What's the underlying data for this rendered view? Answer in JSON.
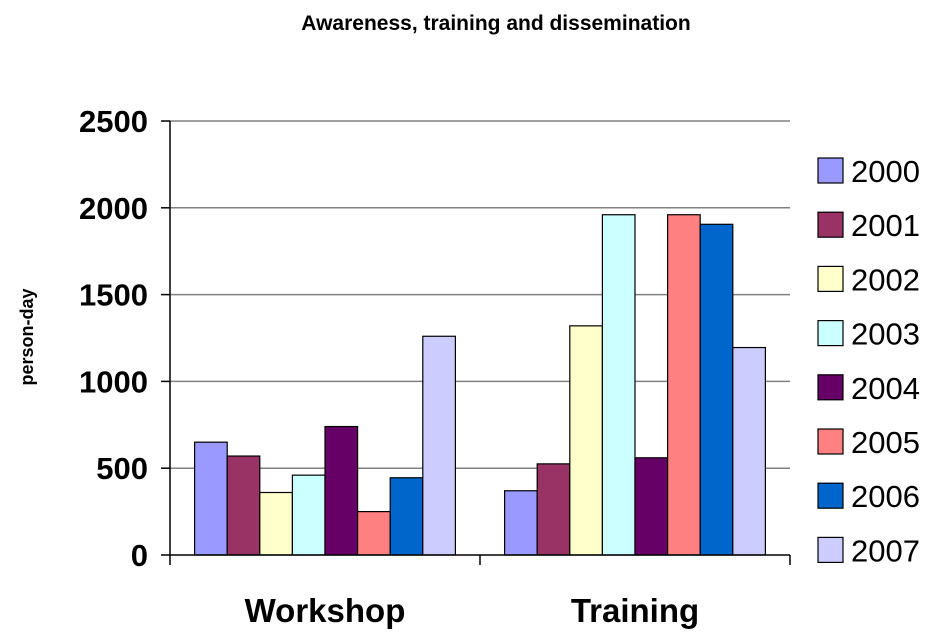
{
  "chart_data": {
    "type": "bar",
    "title": "Awareness, training and dissemination",
    "xlabel": "",
    "ylabel": "person-day",
    "categories": [
      "Workshop",
      "Training"
    ],
    "ylim": [
      0,
      2500
    ],
    "yticks": [
      0,
      500,
      1000,
      1500,
      2000,
      2500
    ],
    "grid": true,
    "legend_position": "right",
    "series": [
      {
        "name": "2000",
        "color": "#9999ff",
        "values": [
          650,
          370
        ]
      },
      {
        "name": "2001",
        "color": "#993366",
        "values": [
          570,
          525
        ]
      },
      {
        "name": "2002",
        "color": "#ffffcc",
        "values": [
          360,
          1320
        ]
      },
      {
        "name": "2003",
        "color": "#ccffff",
        "values": [
          460,
          1960
        ]
      },
      {
        "name": "2004",
        "color": "#660066",
        "values": [
          740,
          560
        ]
      },
      {
        "name": "2005",
        "color": "#ff8080",
        "values": [
          250,
          1960
        ]
      },
      {
        "name": "2006",
        "color": "#0066cc",
        "values": [
          445,
          1905
        ]
      },
      {
        "name": "2007",
        "color": "#ccccff",
        "values": [
          1260,
          1195
        ]
      }
    ]
  }
}
